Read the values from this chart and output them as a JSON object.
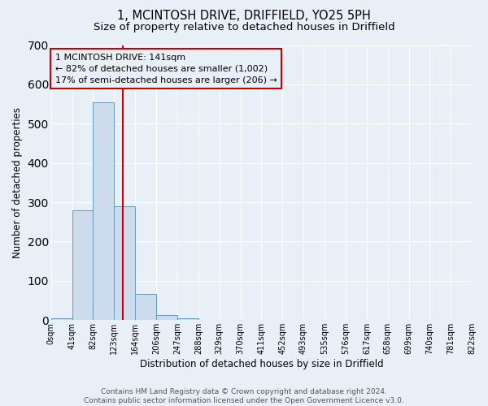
{
  "title": "1, MCINTOSH DRIVE, DRIFFIELD, YO25 5PH",
  "subtitle": "Size of property relative to detached houses in Driffield",
  "xlabel": "Distribution of detached houses by size in Driffield",
  "ylabel": "Number of detached properties",
  "bin_edges": [
    0,
    41,
    82,
    123,
    164,
    206,
    247,
    288,
    329,
    370,
    411,
    452,
    493,
    535,
    576,
    617,
    658,
    699,
    740,
    781,
    822
  ],
  "bin_heights": [
    5,
    280,
    555,
    290,
    67,
    13,
    4,
    0,
    0,
    0,
    0,
    0,
    0,
    0,
    0,
    0,
    0,
    0,
    0,
    0
  ],
  "bar_facecolor": "#cddcec",
  "bar_edgecolor": "#6699bb",
  "property_line_x": 141,
  "property_line_color": "#cc0000",
  "annotation_box_edgecolor": "#cc0000",
  "annotation_text_line1": "1 MCINTOSH DRIVE: 141sqm",
  "annotation_text_line2": "← 82% of detached houses are smaller (1,002)",
  "annotation_text_line3": "17% of semi-detached houses are larger (206) →",
  "ylim": [
    0,
    700
  ],
  "yticks": [
    0,
    100,
    200,
    300,
    400,
    500,
    600,
    700
  ],
  "tick_labels": [
    "0sqm",
    "41sqm",
    "82sqm",
    "123sqm",
    "164sqm",
    "206sqm",
    "247sqm",
    "288sqm",
    "329sqm",
    "370sqm",
    "411sqm",
    "452sqm",
    "493sqm",
    "535sqm",
    "576sqm",
    "617sqm",
    "658sqm",
    "699sqm",
    "740sqm",
    "781sqm",
    "822sqm"
  ],
  "footer_line1": "Contains HM Land Registry data © Crown copyright and database right 2024.",
  "footer_line2": "Contains public sector information licensed under the Open Government Licence v3.0.",
  "background_color": "#e8eff7",
  "plot_bg_color": "#e8eff7",
  "grid_color": "#ffffff",
  "title_fontsize": 10.5,
  "subtitle_fontsize": 9.5,
  "annotation_fontsize": 8,
  "footer_fontsize": 6.5,
  "ylabel_fontsize": 8.5,
  "xlabel_fontsize": 8.5,
  "tick_fontsize": 7
}
